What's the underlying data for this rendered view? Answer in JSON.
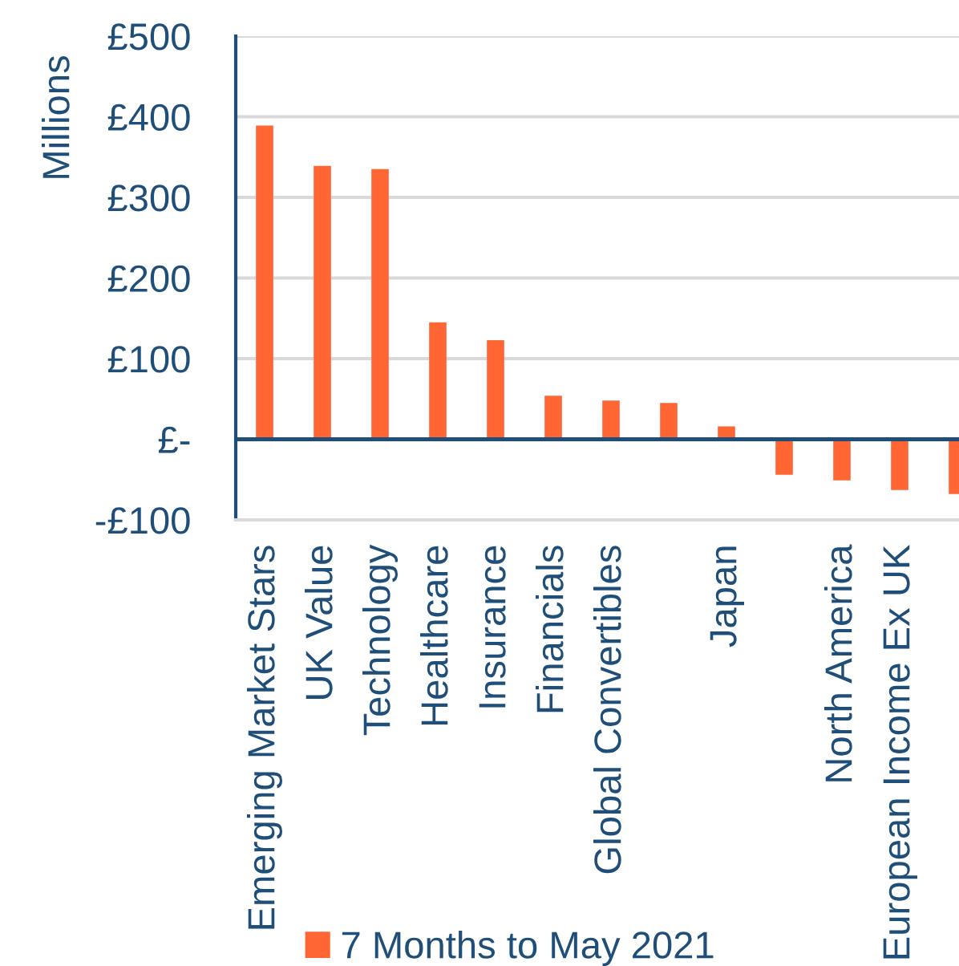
{
  "chart_data": {
    "type": "bar",
    "ylabel": "Millions",
    "categories": [
      "Emerging Market Stars",
      "UK Value",
      "Technology",
      "Healthcare",
      "Insurance",
      "Financials",
      "Global Convertibles",
      null,
      "Japan",
      null,
      "North America",
      "European Income Ex UK",
      null
    ],
    "series": [
      {
        "name": "7 Months to May 2021",
        "color": "#ff6633",
        "values": [
          389,
          339,
          335,
          145,
          123,
          54,
          48,
          45,
          16,
          -44,
          -51,
          -63,
          -68
        ]
      }
    ],
    "ylim": [
      -100,
      500
    ],
    "yticks": [
      {
        "value": -100,
        "label": "-£100"
      },
      {
        "value": 0,
        "label": "£-"
      },
      {
        "value": 100,
        "label": "£100"
      },
      {
        "value": 200,
        "label": "£200"
      },
      {
        "value": 300,
        "label": "£300"
      },
      {
        "value": 400,
        "label": "£400"
      },
      {
        "value": 500,
        "label": "£500"
      }
    ],
    "ref_lines": [
      {
        "axis": "y",
        "value": 0,
        "color": "#1f4e79",
        "line_style": "solid"
      }
    ],
    "grid": "y",
    "legend": "bottom"
  }
}
